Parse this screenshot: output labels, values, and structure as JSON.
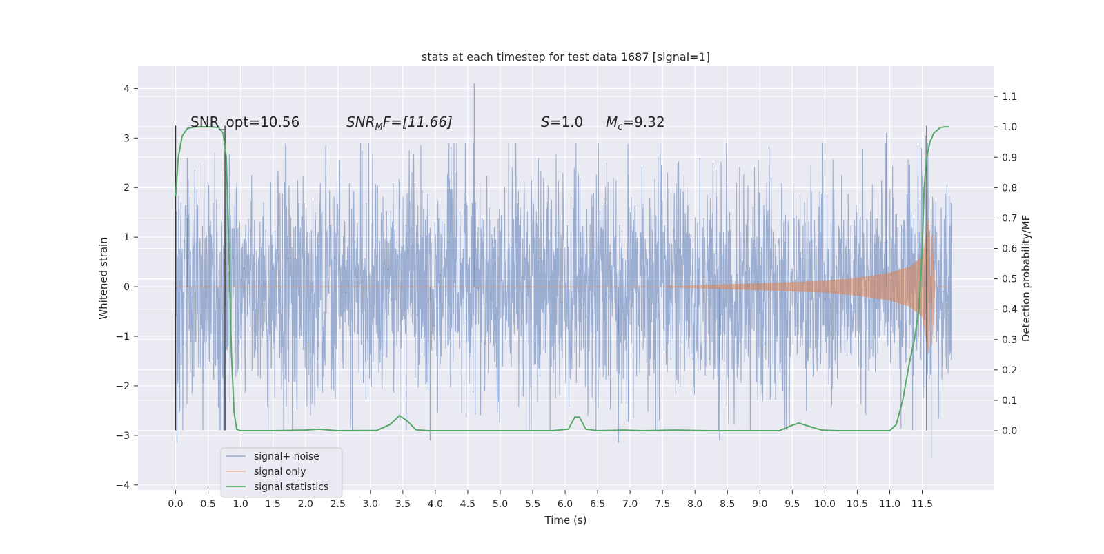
{
  "chart_data": {
    "type": "line",
    "title": "stats at each timestep for test data 1687 [signal=1]",
    "xlabel": "Time (s)",
    "ylabel_left": "Whitened strain",
    "ylabel_right": "Detection probability/MF",
    "xlim": [
      -0.58,
      12.6
    ],
    "ylim_left": [
      -4.1,
      4.45
    ],
    "ylim_right": [
      -0.195,
      1.2
    ],
    "x_ticks": [
      "0.0",
      "0.5",
      "1.0",
      "1.5",
      "2.0",
      "2.5",
      "3.0",
      "3.5",
      "4.0",
      "4.5",
      "5.0",
      "5.5",
      "6.0",
      "6.5",
      "7.0",
      "7.5",
      "8.0",
      "8.5",
      "9.0",
      "9.5",
      "10.0",
      "10.5",
      "11.0",
      "11.5"
    ],
    "y_ticks_left": [
      "−4",
      "−3",
      "−2",
      "−1",
      "0",
      "1",
      "2",
      "3",
      "4"
    ],
    "y_ticks_right": [
      "0.0",
      "0.1",
      "0.2",
      "0.3",
      "0.4",
      "0.5",
      "0.6",
      "0.7",
      "0.8",
      "0.9",
      "1.0",
      "1.1"
    ],
    "grid": true,
    "legend": "lower-left",
    "vertical_lines_x": [
      0.0,
      0.76,
      11.57
    ],
    "vertical_lines_ymax": 3.25,
    "annotations": [
      {
        "text": "SNR_opt=10.56"
      },
      {
        "text": "SNR_MF=[11.66]",
        "main": "SNR",
        "sub": "M",
        "tail": "F=[11.66]"
      },
      {
        "text": "S=1.0",
        "main": "S",
        "tail": "=1.0"
      },
      {
        "text": "M_c=9.32",
        "main": "M",
        "sub": "c",
        "tail": "=9.32"
      }
    ],
    "series": [
      {
        "name": "signal+ noise",
        "axis": "left",
        "color": "#4c72b0",
        "description_values": "white noise, sample std ~1.1, x from 0.0 to 11.95, extremes ~4.1 at x=4.6 and ~-3.45 at x=11.64",
        "x_range": [
          0.0,
          11.95
        ],
        "envelope_upper": [
          [
            0.0,
            1.5
          ],
          [
            11.95,
            1.5
          ]
        ],
        "spikes": [
          [
            0.02,
            -3.15
          ],
          [
            0.18,
            2.6
          ],
          [
            4.6,
            4.1
          ],
          [
            11.64,
            -3.45
          ],
          [
            3.92,
            -3.1
          ],
          [
            6.82,
            -3.15
          ],
          [
            8.38,
            -3.1
          ],
          [
            10.95,
            3.1
          ],
          [
            11.55,
            3.05
          ]
        ]
      },
      {
        "name": "signal only",
        "axis": "left",
        "color": "#dd8452",
        "points": [
          [
            0.0,
            0.0
          ],
          [
            7.5,
            0.0
          ],
          [
            8.0,
            0.03
          ],
          [
            9.0,
            0.07
          ],
          [
            10.0,
            0.12
          ],
          [
            10.5,
            0.18
          ],
          [
            11.0,
            0.28
          ],
          [
            11.3,
            0.4
          ],
          [
            11.5,
            0.6
          ],
          [
            11.6,
            1.4
          ],
          [
            11.65,
            -1.2
          ],
          [
            11.7,
            0.0
          ],
          [
            11.95,
            0.0
          ]
        ]
      },
      {
        "name": "signal statistics",
        "axis": "right",
        "color": "#55a868",
        "points": [
          [
            0.0,
            0.77
          ],
          [
            0.04,
            0.9
          ],
          [
            0.1,
            0.97
          ],
          [
            0.18,
            0.995
          ],
          [
            0.3,
            1.0
          ],
          [
            0.55,
            1.0
          ],
          [
            0.66,
            0.998
          ],
          [
            0.73,
            0.98
          ],
          [
            0.78,
            0.9
          ],
          [
            0.82,
            0.6
          ],
          [
            0.86,
            0.25
          ],
          [
            0.9,
            0.06
          ],
          [
            0.94,
            0.005
          ],
          [
            1.0,
            0.0
          ],
          [
            1.5,
            0.0
          ],
          [
            2.0,
            0.002
          ],
          [
            2.2,
            0.005
          ],
          [
            2.5,
            0.0
          ],
          [
            3.1,
            0.001
          ],
          [
            3.3,
            0.02
          ],
          [
            3.45,
            0.05
          ],
          [
            3.58,
            0.03
          ],
          [
            3.7,
            0.003
          ],
          [
            3.9,
            0.0
          ],
          [
            5.8,
            0.0
          ],
          [
            6.05,
            0.005
          ],
          [
            6.15,
            0.045
          ],
          [
            6.22,
            0.045
          ],
          [
            6.32,
            0.005
          ],
          [
            6.5,
            0.0
          ],
          [
            6.9,
            0.002
          ],
          [
            7.2,
            0.0
          ],
          [
            7.7,
            0.002
          ],
          [
            8.2,
            0.0
          ],
          [
            9.3,
            0.0
          ],
          [
            9.5,
            0.018
          ],
          [
            9.6,
            0.025
          ],
          [
            9.75,
            0.015
          ],
          [
            9.95,
            0.002
          ],
          [
            10.2,
            0.0
          ],
          [
            11.0,
            0.0
          ],
          [
            11.1,
            0.02
          ],
          [
            11.2,
            0.1
          ],
          [
            11.3,
            0.22
          ],
          [
            11.38,
            0.3
          ],
          [
            11.45,
            0.4
          ],
          [
            11.5,
            0.6
          ],
          [
            11.53,
            0.8
          ],
          [
            11.57,
            0.9
          ],
          [
            11.62,
            0.95
          ],
          [
            11.68,
            0.98
          ],
          [
            11.78,
            0.998
          ],
          [
            11.85,
            1.0
          ],
          [
            11.92,
            1.0
          ]
        ]
      }
    ]
  }
}
